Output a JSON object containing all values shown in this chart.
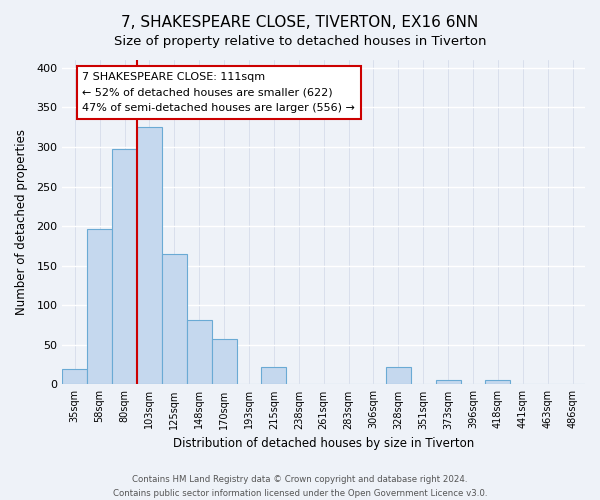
{
  "title": "7, SHAKESPEARE CLOSE, TIVERTON, EX16 6NN",
  "subtitle": "Size of property relative to detached houses in Tiverton",
  "xlabel": "Distribution of detached houses by size in Tiverton",
  "ylabel": "Number of detached properties",
  "bar_labels": [
    "35sqm",
    "58sqm",
    "80sqm",
    "103sqm",
    "125sqm",
    "148sqm",
    "170sqm",
    "193sqm",
    "215sqm",
    "238sqm",
    "261sqm",
    "283sqm",
    "306sqm",
    "328sqm",
    "351sqm",
    "373sqm",
    "396sqm",
    "418sqm",
    "441sqm",
    "463sqm",
    "486sqm"
  ],
  "bar_values": [
    20,
    197,
    297,
    325,
    165,
    82,
    57,
    0,
    22,
    0,
    0,
    0,
    0,
    22,
    0,
    5,
    0,
    5,
    0,
    0,
    0
  ],
  "bar_color": "#c5d8ee",
  "bar_edge_color": "#6aaad4",
  "vline_x": 3,
  "vline_color": "#cc0000",
  "ylim": [
    0,
    410
  ],
  "yticks": [
    0,
    50,
    100,
    150,
    200,
    250,
    300,
    350,
    400
  ],
  "annotation_title": "7 SHAKESPEARE CLOSE: 111sqm",
  "annotation_line1": "← 52% of detached houses are smaller (622)",
  "annotation_line2": "47% of semi-detached houses are larger (556) →",
  "footer_line1": "Contains HM Land Registry data © Crown copyright and database right 2024.",
  "footer_line2": "Contains public sector information licensed under the Open Government Licence v3.0.",
  "background_color": "#eef2f8",
  "grid_color": "#d0d8e8",
  "title_fontsize": 11,
  "subtitle_fontsize": 9.5
}
